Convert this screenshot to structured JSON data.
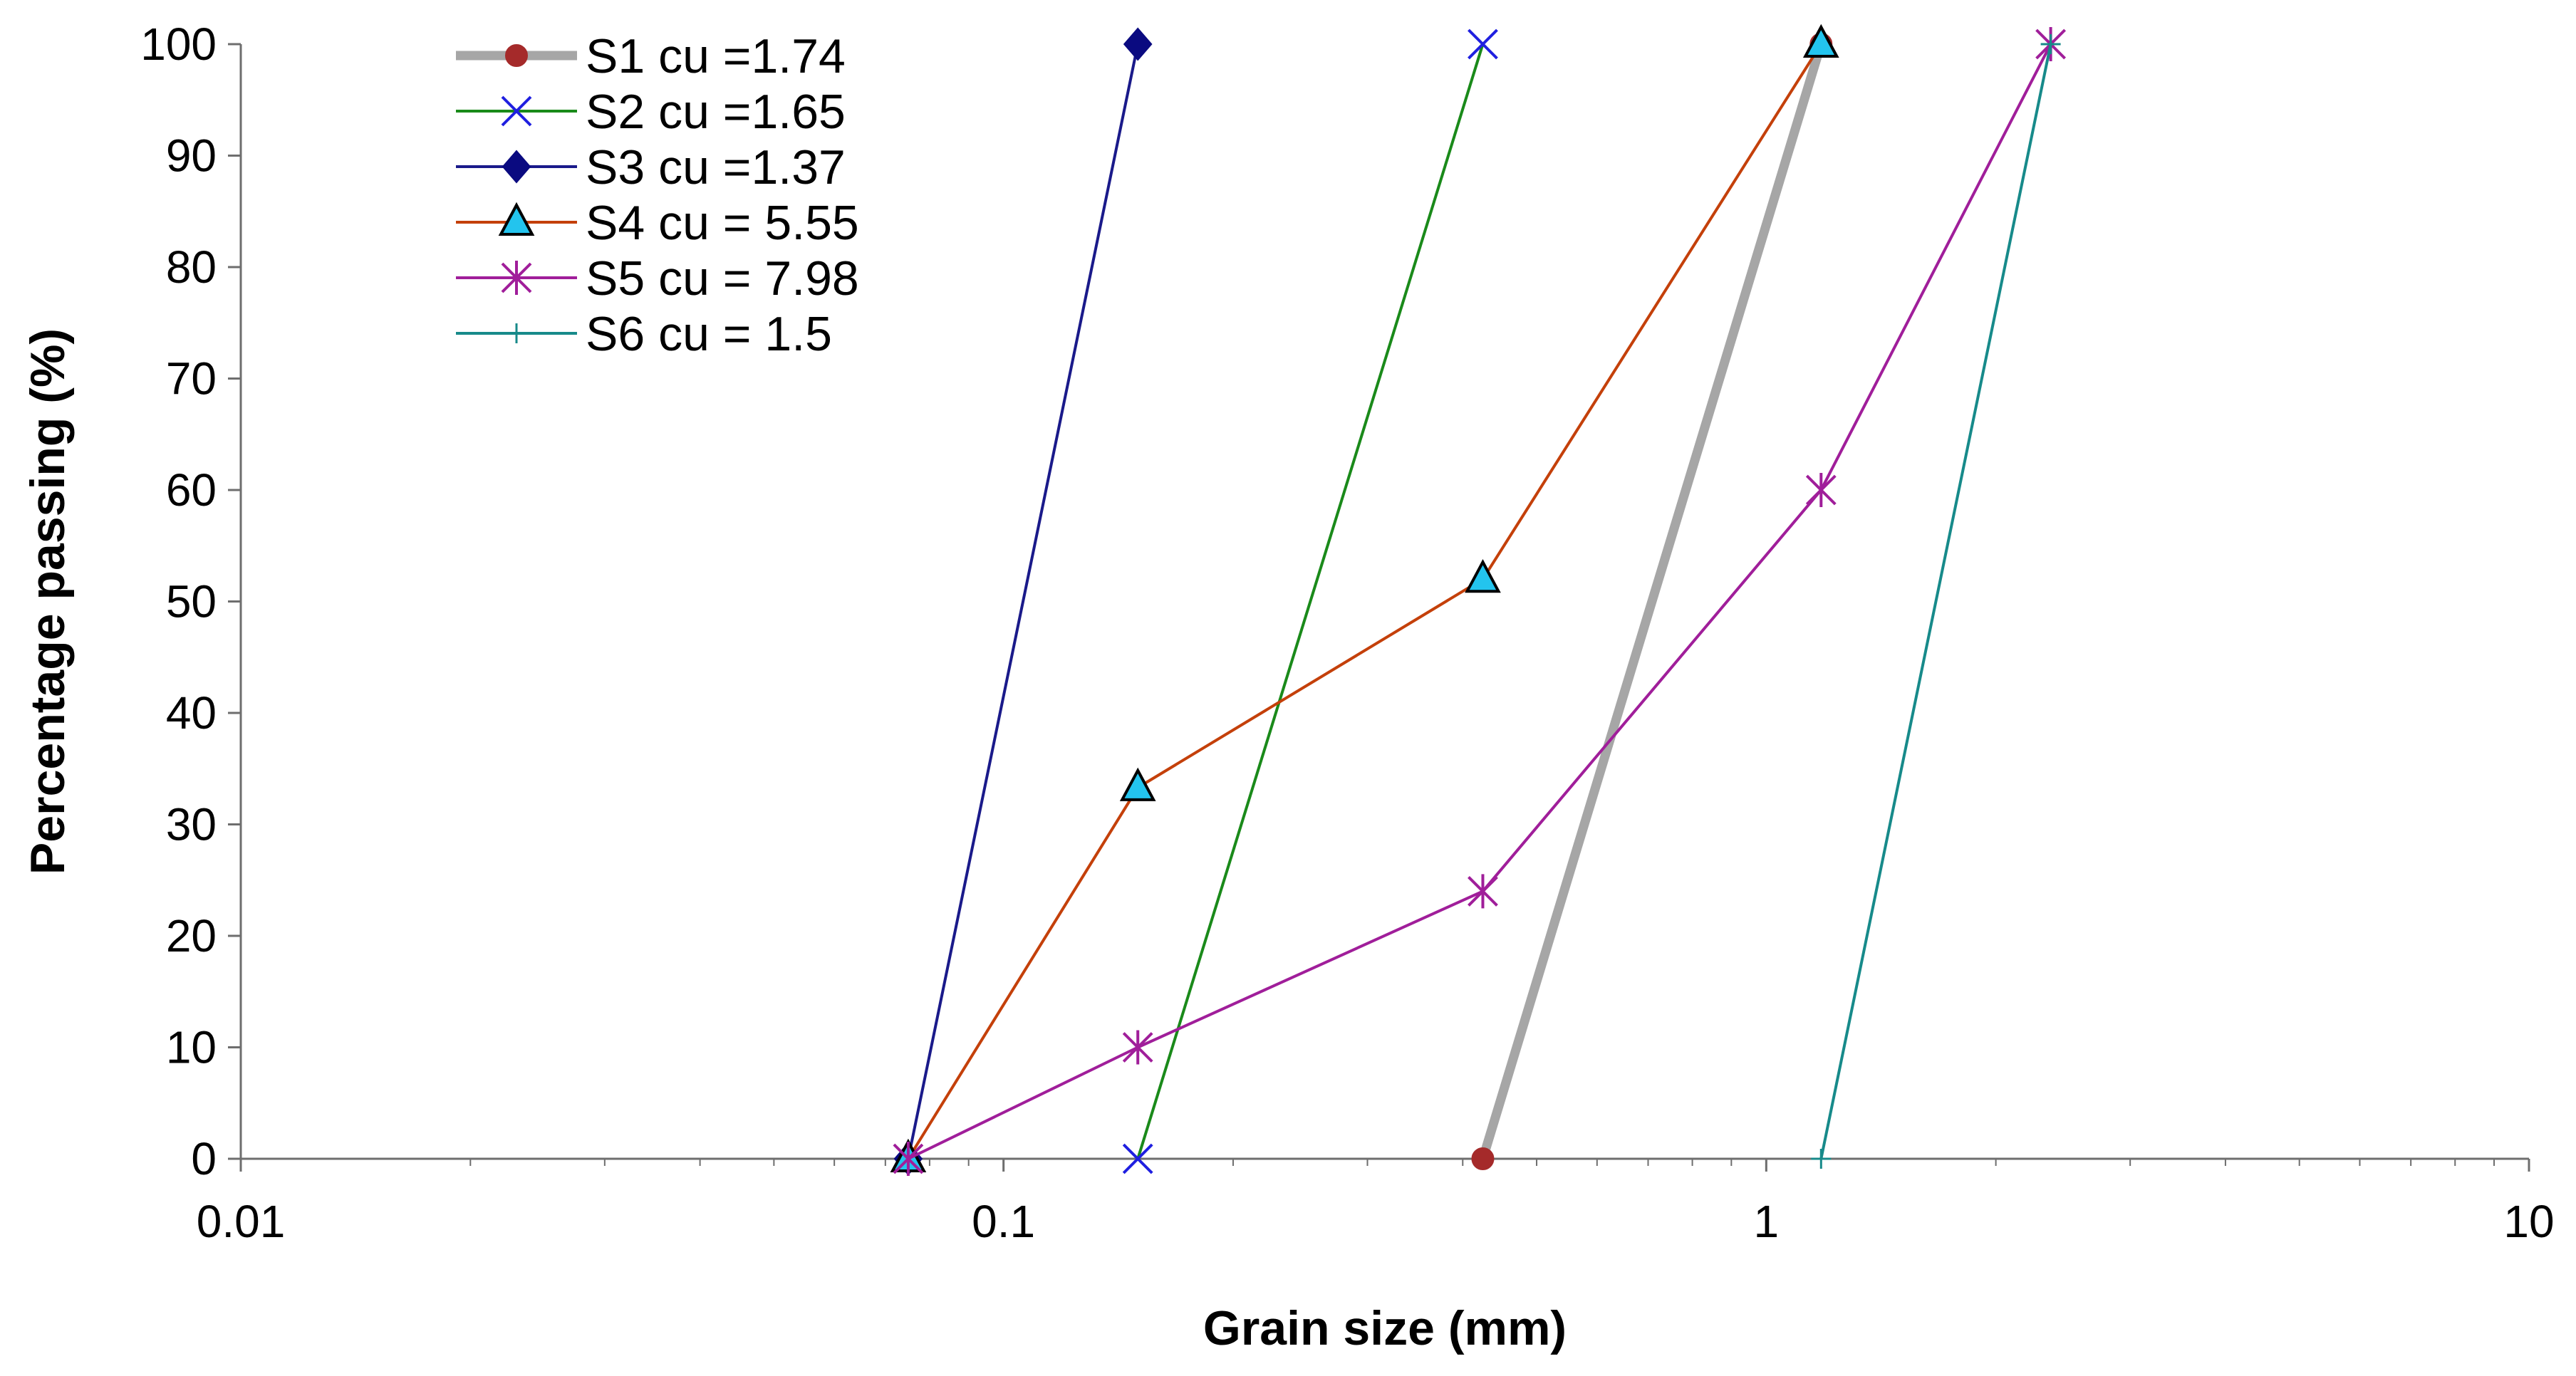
{
  "chart_data": {
    "type": "line",
    "title": "",
    "xlabel": "Grain size (mm)",
    "ylabel": "Percentage passing (%)",
    "x_scale": "log",
    "xlim": [
      0.01,
      10
    ],
    "ylim": [
      0,
      100
    ],
    "x_ticks": [
      "0.01",
      "0.1",
      "1",
      "10"
    ],
    "y_ticks": [
      "0",
      "10",
      "20",
      "30",
      "40",
      "50",
      "60",
      "70",
      "80",
      "90",
      "100"
    ],
    "grid": false,
    "legend_position": "top-left",
    "series": [
      {
        "name": "S1 cu =1.74",
        "color": "#a6a6a6",
        "marker": "circle",
        "marker_color": "#a52a2a",
        "x": [
          0.425,
          1.18
        ],
        "y": [
          0,
          100
        ]
      },
      {
        "name": "S2 cu =1.65",
        "color": "#1a8a1a",
        "marker": "x",
        "marker_color": "#1f1fe0",
        "x": [
          0.15,
          0.425
        ],
        "y": [
          0,
          100
        ]
      },
      {
        "name": "S3 cu =1.37",
        "color": "#1a1a8a",
        "marker": "diamond",
        "marker_color": "#0a0a80",
        "x": [
          0.075,
          0.15
        ],
        "y": [
          0,
          100
        ]
      },
      {
        "name": "S4 cu = 5.55",
        "color": "#c4400a",
        "marker": "triangle",
        "marker_color": "#23c4ee",
        "x": [
          0.075,
          0.15,
          0.425,
          1.18
        ],
        "y": [
          0,
          33.3,
          52,
          100
        ]
      },
      {
        "name": "S5 cu = 7.98",
        "color": "#a01e9a",
        "marker": "asterisk",
        "marker_color": "#a01e9a",
        "x": [
          0.075,
          0.15,
          0.425,
          1.18,
          2.36
        ],
        "y": [
          0,
          10,
          24,
          60,
          100
        ]
      },
      {
        "name": "S6 cu = 1.5",
        "color": "#178a8a",
        "marker": "plus",
        "marker_color": "#178a8a",
        "x": [
          1.18,
          2.36
        ],
        "y": [
          0,
          100
        ]
      }
    ]
  }
}
